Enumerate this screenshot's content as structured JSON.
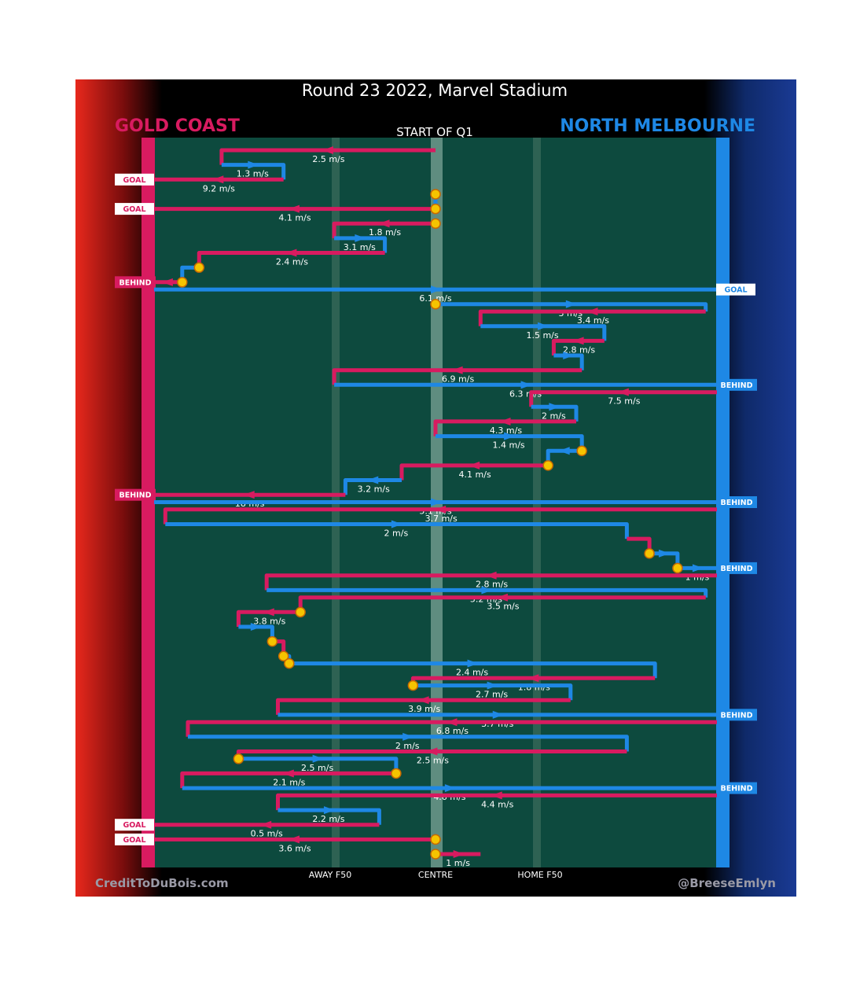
{
  "title": "Round 23 2022, Marvel Stadium",
  "period_label": "START OF Q1",
  "teams": {
    "left": {
      "name": "GOLD COAST",
      "color": "#d81b60"
    },
    "right": {
      "name": "NORTH MELBOURNE",
      "color": "#1e88e5"
    }
  },
  "colors": {
    "turnover": "#f5c400",
    "field": "#0d4a3e",
    "centre_band": "#5f8d80"
  },
  "axis_labels": {
    "away_f50": "AWAY F50",
    "centre": "CENTRE",
    "home_f50": "HOME F50"
  },
  "credits": {
    "left": "CreditToDuBois.com",
    "right": "@BreeseEmlyn"
  },
  "chart_data": {
    "type": "line",
    "note_units": "x = ground position (0 = Gold Coast goal, 100 = North Melbourne goal, 50 = centre); y = chain order",
    "x_range": [
      0,
      100
    ],
    "markers": [
      {
        "label": "AWAY F50",
        "x": 32
      },
      {
        "label": "CENTRE",
        "x": 50
      },
      {
        "label": "HOME F50",
        "x": 68
      }
    ],
    "chains": [
      {
        "team": "GC",
        "speed": "2.5 m/s",
        "path": [
          [
            50,
            1
          ],
          [
            12,
            1
          ],
          [
            12,
            3
          ]
        ]
      },
      {
        "team": "NM",
        "speed": "1.3 m/s",
        "path": [
          [
            12,
            3
          ],
          [
            23,
            3
          ],
          [
            23,
            5
          ]
        ]
      },
      {
        "team": "GC",
        "speed": "9.2 m/s",
        "path": [
          [
            23,
            5
          ],
          [
            0,
            5
          ]
        ],
        "end": "GOAL"
      },
      {
        "team": "NM",
        "speed": "",
        "path": [
          [
            50,
            7
          ],
          [
            50,
            9
          ]
        ],
        "start_turnover": true
      },
      {
        "team": "GC",
        "speed": "4.1 m/s",
        "path": [
          [
            50,
            9
          ],
          [
            0,
            9
          ]
        ],
        "start_turnover": true,
        "end": "GOAL"
      },
      {
        "team": "GC",
        "speed": "1.8 m/s",
        "path": [
          [
            50,
            11
          ],
          [
            32,
            11
          ],
          [
            32,
            13
          ]
        ],
        "start_turnover": true
      },
      {
        "team": "NM",
        "speed": "3.1 m/s",
        "path": [
          [
            32,
            13
          ],
          [
            41,
            13
          ],
          [
            41,
            15
          ]
        ]
      },
      {
        "team": "GC",
        "speed": "2.4 m/s",
        "path": [
          [
            41,
            15
          ],
          [
            8,
            15
          ],
          [
            8,
            17
          ]
        ]
      },
      {
        "team": "NM",
        "speed": "",
        "path": [
          [
            8,
            17
          ],
          [
            5,
            17
          ],
          [
            5,
            19
          ]
        ],
        "start_turnover": true
      },
      {
        "team": "GC",
        "speed": "",
        "path": [
          [
            5,
            19
          ],
          [
            0,
            19
          ]
        ],
        "start_turnover": true,
        "end": "BEHIND"
      },
      {
        "team": "NM",
        "speed": "6.1 m/s",
        "path": [
          [
            0,
            20
          ],
          [
            100,
            20
          ]
        ],
        "end": "GOAL"
      },
      {
        "team": "NM",
        "speed": "3 m/s",
        "path": [
          [
            50,
            22
          ],
          [
            98,
            22
          ],
          [
            98,
            23
          ]
        ],
        "start_turnover": true
      },
      {
        "team": "GC",
        "speed": "3.4 m/s",
        "path": [
          [
            98,
            23
          ],
          [
            58,
            23
          ],
          [
            58,
            25
          ]
        ]
      },
      {
        "team": "NM",
        "speed": "1.5 m/s",
        "path": [
          [
            58,
            25
          ],
          [
            80,
            25
          ],
          [
            80,
            27
          ]
        ]
      },
      {
        "team": "GC",
        "speed": "2.8 m/s",
        "path": [
          [
            80,
            27
          ],
          [
            71,
            27
          ],
          [
            71,
            29
          ]
        ]
      },
      {
        "team": "NM",
        "speed": "",
        "path": [
          [
            71,
            29
          ],
          [
            76,
            29
          ],
          [
            76,
            31
          ]
        ]
      },
      {
        "team": "GC",
        "speed": "6.9 m/s",
        "path": [
          [
            76,
            31
          ],
          [
            32,
            31
          ],
          [
            32,
            33
          ]
        ]
      },
      {
        "team": "NM",
        "speed": "6.3 m/s",
        "path": [
          [
            32,
            33
          ],
          [
            100,
            33
          ]
        ],
        "end": "BEHIND"
      },
      {
        "team": "GC",
        "speed": "7.5 m/s",
        "path": [
          [
            100,
            34
          ],
          [
            67,
            34
          ],
          [
            67,
            36
          ]
        ]
      },
      {
        "team": "NM",
        "speed": "2 m/s",
        "path": [
          [
            67,
            36
          ],
          [
            75,
            36
          ],
          [
            75,
            38
          ]
        ]
      },
      {
        "team": "GC",
        "speed": "4.3 m/s",
        "path": [
          [
            75,
            38
          ],
          [
            50,
            38
          ],
          [
            50,
            40
          ]
        ]
      },
      {
        "team": "NM",
        "speed": "1.4 m/s",
        "path": [
          [
            50,
            40
          ],
          [
            76,
            40
          ],
          [
            76,
            42
          ]
        ]
      },
      {
        "team": "NM",
        "speed": "",
        "path": [
          [
            76,
            42
          ],
          [
            70,
            42
          ],
          [
            70,
            44
          ]
        ],
        "start_turnover": true
      },
      {
        "team": "GC",
        "speed": "4.1 m/s",
        "path": [
          [
            70,
            44
          ],
          [
            44,
            44
          ],
          [
            44,
            46
          ]
        ],
        "start_turnover": true
      },
      {
        "team": "NM",
        "speed": "3.2 m/s",
        "path": [
          [
            44,
            46
          ],
          [
            34,
            46
          ],
          [
            34,
            48
          ]
        ]
      },
      {
        "team": "GC",
        "speed": "18 m/s",
        "path": [
          [
            34,
            48
          ],
          [
            0,
            48
          ]
        ],
        "end": "BEHIND"
      },
      {
        "team": "NM",
        "speed": "5.1 m/s",
        "path": [
          [
            0,
            49
          ],
          [
            100,
            49
          ]
        ],
        "end": "BEHIND"
      },
      {
        "team": "GC",
        "speed": "3.7 m/s",
        "path": [
          [
            100,
            50
          ],
          [
            2,
            50
          ],
          [
            2,
            52
          ]
        ]
      },
      {
        "team": "NM",
        "speed": "2 m/s",
        "path": [
          [
            2,
            52
          ],
          [
            84,
            52
          ],
          [
            84,
            54
          ]
        ]
      },
      {
        "team": "GC",
        "speed": "",
        "path": [
          [
            84,
            54
          ],
          [
            88,
            54
          ],
          [
            88,
            56
          ]
        ]
      },
      {
        "team": "NM",
        "speed": "",
        "path": [
          [
            88,
            56
          ],
          [
            93,
            56
          ],
          [
            93,
            58
          ]
        ],
        "start_turnover": true
      },
      {
        "team": "NM",
        "speed": "1 m/s",
        "path": [
          [
            93,
            58
          ],
          [
            100,
            58
          ]
        ],
        "start_turnover": true,
        "end": "BEHIND"
      },
      {
        "team": "GC",
        "speed": "2.8 m/s",
        "path": [
          [
            100,
            59
          ],
          [
            20,
            59
          ],
          [
            20,
            61
          ]
        ]
      },
      {
        "team": "NM",
        "speed": "5.2 m/s",
        "path": [
          [
            20,
            61
          ],
          [
            98,
            61
          ],
          [
            98,
            62
          ]
        ]
      },
      {
        "team": "GC",
        "speed": "3.5 m/s",
        "path": [
          [
            98,
            62
          ],
          [
            26,
            62
          ],
          [
            26,
            64
          ]
        ]
      },
      {
        "team": "GC",
        "speed": "3.8 m/s",
        "path": [
          [
            26,
            64
          ],
          [
            15,
            64
          ],
          [
            15,
            66
          ]
        ],
        "start_turnover": true
      },
      {
        "team": "NM",
        "speed": "",
        "path": [
          [
            15,
            66
          ],
          [
            21,
            66
          ],
          [
            21,
            68
          ]
        ]
      },
      {
        "team": "GC",
        "speed": "",
        "path": [
          [
            21,
            68
          ],
          [
            23,
            68
          ],
          [
            23,
            70
          ]
        ],
        "start_turnover": true
      },
      {
        "team": "NM",
        "speed": "",
        "path": [
          [
            23,
            70
          ],
          [
            24,
            70
          ],
          [
            24,
            71
          ]
        ],
        "start_turnover": true
      },
      {
        "team": "NM",
        "speed": "2.4 m/s",
        "path": [
          [
            24,
            71
          ],
          [
            89,
            71
          ],
          [
            89,
            73
          ]
        ],
        "start_turnover": true
      },
      {
        "team": "GC",
        "speed": "1.8 m/s",
        "path": [
          [
            89,
            73
          ],
          [
            46,
            73
          ],
          [
            46,
            74
          ]
        ]
      },
      {
        "team": "NM",
        "speed": "2.7 m/s",
        "path": [
          [
            46,
            74
          ],
          [
            74,
            74
          ],
          [
            74,
            76
          ]
        ],
        "start_turnover": true
      },
      {
        "team": "GC",
        "speed": "3.9 m/s",
        "path": [
          [
            74,
            76
          ],
          [
            22,
            76
          ],
          [
            22,
            78
          ]
        ]
      },
      {
        "team": "NM",
        "speed": "3.7 m/s",
        "path": [
          [
            22,
            78
          ],
          [
            100,
            78
          ]
        ],
        "end": "BEHIND"
      },
      {
        "team": "GC",
        "speed": "6.8 m/s",
        "path": [
          [
            100,
            79
          ],
          [
            6,
            79
          ],
          [
            6,
            81
          ]
        ]
      },
      {
        "team": "NM",
        "speed": "2 m/s",
        "path": [
          [
            6,
            81
          ],
          [
            84,
            81
          ],
          [
            84,
            83
          ]
        ]
      },
      {
        "team": "GC",
        "speed": "2.5 m/s",
        "path": [
          [
            84,
            83
          ],
          [
            15,
            83
          ],
          [
            15,
            84
          ]
        ]
      },
      {
        "team": "NM",
        "speed": "2.5 m/s",
        "path": [
          [
            15,
            84
          ],
          [
            43,
            84
          ],
          [
            43,
            86
          ]
        ],
        "start_turnover": true
      },
      {
        "team": "GC",
        "speed": "2.1 m/s",
        "path": [
          [
            43,
            86
          ],
          [
            5,
            86
          ],
          [
            5,
            88
          ]
        ],
        "start_turnover": true
      },
      {
        "team": "NM",
        "speed": "4.6 m/s",
        "path": [
          [
            5,
            88
          ],
          [
            100,
            88
          ]
        ],
        "end": "BEHIND"
      },
      {
        "team": "GC",
        "speed": "4.4 m/s",
        "path": [
          [
            100,
            89
          ],
          [
            22,
            89
          ],
          [
            22,
            91
          ]
        ]
      },
      {
        "team": "NM",
        "speed": "2.2 m/s",
        "path": [
          [
            22,
            91
          ],
          [
            40,
            91
          ],
          [
            40,
            93
          ]
        ]
      },
      {
        "team": "GC",
        "speed": "0.5 m/s",
        "path": [
          [
            40,
            93
          ],
          [
            0,
            93
          ]
        ],
        "end": "GOAL"
      },
      {
        "team": "GC",
        "speed": "3.6 m/s",
        "path": [
          [
            50,
            95
          ],
          [
            0,
            95
          ]
        ],
        "start_turnover": true,
        "end": "GOAL"
      },
      {
        "team": "GC",
        "speed": "1 m/s",
        "path": [
          [
            50,
            97
          ],
          [
            58,
            97
          ]
        ],
        "start_turnover": true
      }
    ]
  }
}
